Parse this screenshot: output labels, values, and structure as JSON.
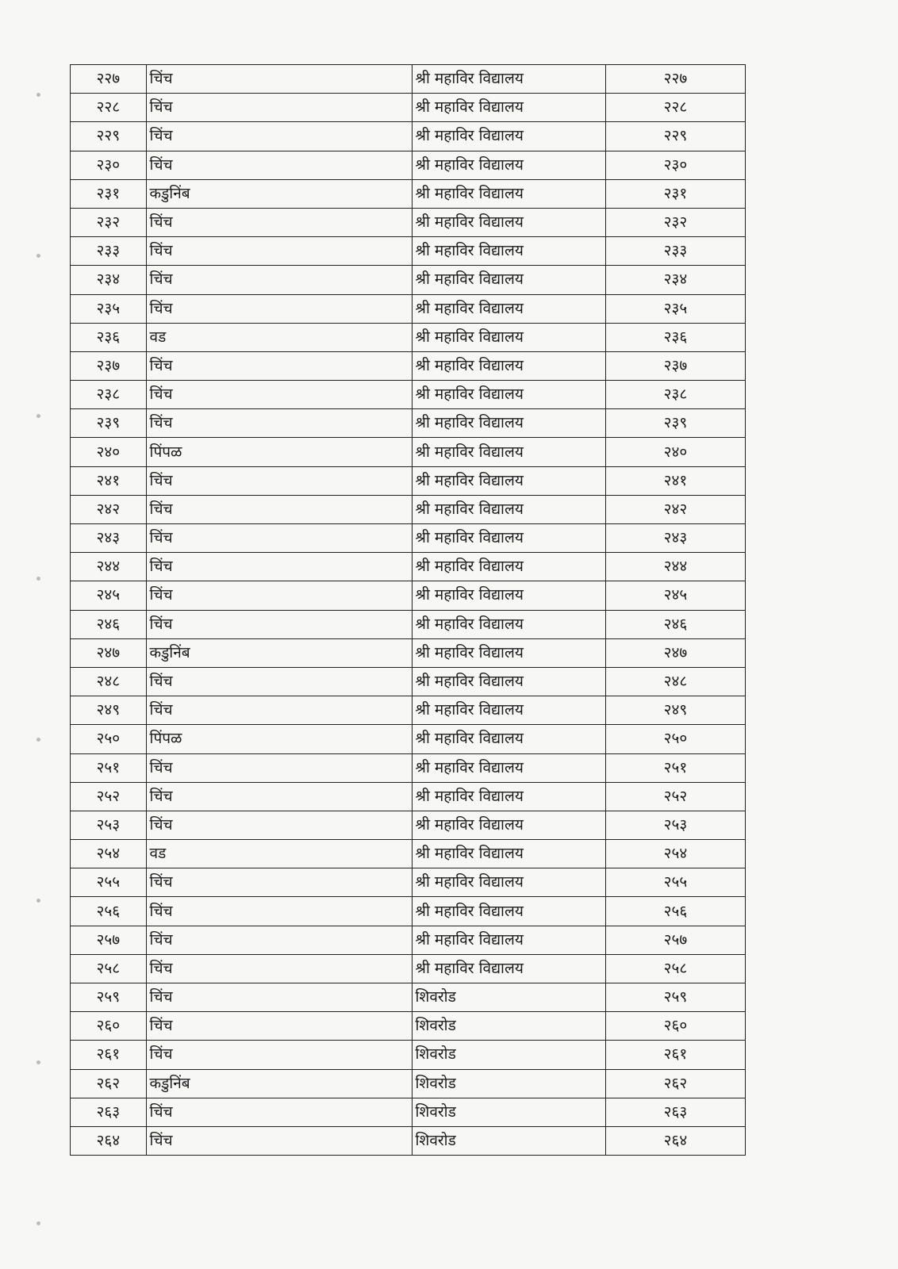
{
  "table": {
    "rows": [
      [
        "२२७",
        "चिंच",
        "श्री महाविर विद्यालय",
        "२२७"
      ],
      [
        "२२८",
        "चिंच",
        "श्री महाविर विद्यालय",
        "२२८"
      ],
      [
        "२२९",
        "चिंच",
        "श्री महाविर विद्यालय",
        "२२९"
      ],
      [
        "२३०",
        "चिंच",
        "श्री महाविर विद्यालय",
        "२३०"
      ],
      [
        "२३१",
        "कडुनिंब",
        "श्री महाविर विद्यालय",
        "२३१"
      ],
      [
        "२३२",
        "चिंच",
        "श्री महाविर विद्यालय",
        "२३२"
      ],
      [
        "२३३",
        "चिंच",
        "श्री महाविर विद्यालय",
        "२३३"
      ],
      [
        "२३४",
        "चिंच",
        "श्री महाविर विद्यालय",
        "२३४"
      ],
      [
        "२३५",
        "चिंच",
        "श्री महाविर विद्यालय",
        "२३५"
      ],
      [
        "२३६",
        "वड",
        "श्री महाविर विद्यालय",
        "२३६"
      ],
      [
        "२३७",
        "चिंच",
        "श्री महाविर विद्यालय",
        "२३७"
      ],
      [
        "२३८",
        "चिंच",
        "श्री महाविर विद्यालय",
        "२३८"
      ],
      [
        "२३९",
        "चिंच",
        "श्री महाविर विद्यालय",
        "२३९"
      ],
      [
        "२४०",
        "पिंपळ",
        "श्री महाविर विद्यालय",
        "२४०"
      ],
      [
        "२४१",
        "चिंच",
        "श्री महाविर विद्यालय",
        "२४१"
      ],
      [
        "२४२",
        "चिंच",
        "श्री महाविर विद्यालय",
        "२४२"
      ],
      [
        "२४३",
        "चिंच",
        "श्री महाविर विद्यालय",
        "२४३"
      ],
      [
        "२४४",
        "चिंच",
        "श्री महाविर विद्यालय",
        "२४४"
      ],
      [
        "२४५",
        "चिंच",
        "श्री महाविर विद्यालय",
        "२४५"
      ],
      [
        "२४६",
        "चिंच",
        "श्री महाविर विद्यालय",
        "२४६"
      ],
      [
        "२४७",
        "कडुनिंब",
        "श्री महाविर विद्यालय",
        "२४७"
      ],
      [
        "२४८",
        "चिंच",
        "श्री महाविर विद्यालय",
        "२४८"
      ],
      [
        "२४९",
        "चिंच",
        "श्री महाविर विद्यालय",
        "२४९"
      ],
      [
        "२५०",
        "पिंपळ",
        "श्री महाविर विद्यालय",
        "२५०"
      ],
      [
        "२५१",
        "चिंच",
        "श्री महाविर विद्यालय",
        "२५१"
      ],
      [
        "२५२",
        "चिंच",
        "श्री महाविर विद्यालय",
        "२५२"
      ],
      [
        "२५३",
        "चिंच",
        "श्री महाविर विद्यालय",
        "२५३"
      ],
      [
        "२५४",
        "वड",
        "श्री महाविर विद्यालय",
        "२५४"
      ],
      [
        "२५५",
        "चिंच",
        "श्री महाविर विद्यालय",
        "२५५"
      ],
      [
        "२५६",
        "चिंच",
        "श्री महाविर विद्यालय",
        "२५६"
      ],
      [
        "२५७",
        "चिंच",
        "श्री महाविर विद्यालय",
        "२५७"
      ],
      [
        "२५८",
        "चिंच",
        "श्री महाविर विद्यालय",
        "२५८"
      ],
      [
        "२५९",
        "चिंच",
        "शिवरोड",
        "२५९"
      ],
      [
        "२६०",
        "चिंच",
        "शिवरोड",
        "२६०"
      ],
      [
        "२६१",
        "चिंच",
        "शिवरोड",
        "२६१"
      ],
      [
        "२६२",
        "कडुनिंब",
        "शिवरोड",
        "२६२"
      ],
      [
        "२६३",
        "चिंच",
        "शिवरोड",
        "२६३"
      ],
      [
        "२६४",
        "चिंच",
        "शिवरोड",
        "२६४"
      ]
    ]
  }
}
